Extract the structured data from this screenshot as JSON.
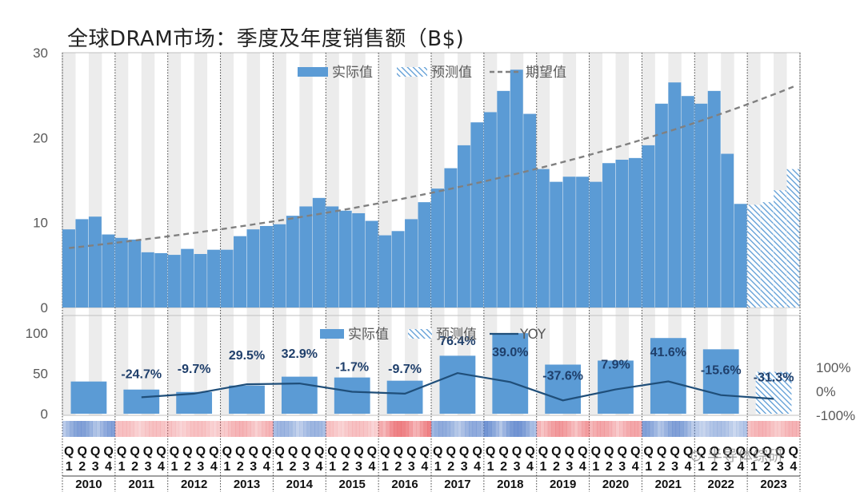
{
  "chart_data": [
    {
      "type": "bar",
      "title": "全球DRAM市场：季度及年度销售额（B$)",
      "panel": "quarterly",
      "ylim": [
        0,
        30
      ],
      "yticks": [
        0,
        10,
        20,
        30
      ],
      "legend": [
        "实际值",
        "预测值",
        "期望值"
      ],
      "legend_position": "top-center",
      "years": [
        "2010",
        "2011",
        "2012",
        "2013",
        "2014",
        "2015",
        "2016",
        "2017",
        "2018",
        "2019",
        "2020",
        "2021",
        "2022",
        "2023"
      ],
      "quarter_letter": "Q",
      "quarter_numbers": [
        "1",
        "2",
        "3",
        "4"
      ],
      "series": [
        {
          "name": "实际值",
          "color": "#5b9bd5",
          "values": [
            9.2,
            10.4,
            10.7,
            8.6,
            8.2,
            8.0,
            6.5,
            6.4,
            6.2,
            6.9,
            6.3,
            6.8,
            6.8,
            8.4,
            9.2,
            9.6,
            9.8,
            10.8,
            11.9,
            12.9,
            11.9,
            11.4,
            11.1,
            10.2,
            8.5,
            9.0,
            10.4,
            12.4,
            14.0,
            16.4,
            19.1,
            21.8,
            23.0,
            25.5,
            28.0,
            22.8,
            16.3,
            14.8,
            15.4,
            15.4,
            14.8,
            17.0,
            17.4,
            17.6,
            19.1,
            24.0,
            26.5,
            24.9,
            24.0,
            25.5,
            18.1,
            12.2,
            null,
            null,
            null,
            null
          ]
        },
        {
          "name": "预测值",
          "color": "#5b9bd5",
          "pattern": "hatch",
          "values": [
            null,
            null,
            null,
            null,
            null,
            null,
            null,
            null,
            null,
            null,
            null,
            null,
            null,
            null,
            null,
            null,
            null,
            null,
            null,
            null,
            null,
            null,
            null,
            null,
            null,
            null,
            null,
            null,
            null,
            null,
            null,
            null,
            null,
            null,
            null,
            null,
            null,
            null,
            null,
            null,
            null,
            null,
            null,
            null,
            null,
            null,
            null,
            null,
            null,
            null,
            null,
            null,
            12.1,
            12.4,
            13.8,
            16.3
          ]
        },
        {
          "name": "期望值",
          "color": "#808080",
          "style": "dashed",
          "start": 7.0,
          "end": 26.0
        }
      ]
    },
    {
      "type": "bar",
      "panel": "annual",
      "ylim": [
        0,
        120
      ],
      "yticks_left": [
        0,
        50,
        100
      ],
      "yticks_right": [
        "100%",
        "0%",
        "-100%"
      ],
      "yoy_range": [
        -100,
        100
      ],
      "legend": [
        "实际值",
        "预测值",
        "YOY"
      ],
      "legend_position": "top-center",
      "categories": [
        "2010",
        "2011",
        "2012",
        "2013",
        "2014",
        "2015",
        "2016",
        "2017",
        "2018",
        "2019",
        "2020",
        "2021",
        "2022",
        "2023"
      ],
      "actual": [
        40,
        30,
        27,
        35,
        46,
        45,
        41,
        72,
        100,
        61,
        66,
        94,
        80,
        null
      ],
      "forecast": [
        null,
        null,
        null,
        null,
        null,
        null,
        null,
        null,
        null,
        null,
        null,
        null,
        null,
        52
      ],
      "yoy_values": [
        null,
        -24.7,
        -9.7,
        29.5,
        32.9,
        -1.7,
        -9.7,
        76.4,
        39.0,
        -37.6,
        7.9,
        41.6,
        -15.6,
        -31.3
      ],
      "yoy_labels": [
        "",
        "-24.7%",
        "-9.7%",
        "29.5%",
        "32.9%",
        "-1.7%",
        "-9.7%",
        "76.4%",
        "39.0%",
        "-37.6%",
        "7.9%",
        "41.6%",
        "-15.6%",
        "-31.3%"
      ],
      "heat_strip": [
        0.7,
        -0.3,
        -0.3,
        -0.4,
        0.5,
        -0.3,
        -0.8,
        0.6,
        0.8,
        -0.6,
        -0.5,
        0.7,
        0.4,
        -0.4
      ]
    }
  ],
  "colors": {
    "bar": "#5b9bd5",
    "line": "#1f4e79",
    "expected": "#808080",
    "stripe": "#ececec",
    "heat_pos": "#4472c4",
    "heat_neg": "#e8555a"
  },
  "watermark": "半导体综研"
}
